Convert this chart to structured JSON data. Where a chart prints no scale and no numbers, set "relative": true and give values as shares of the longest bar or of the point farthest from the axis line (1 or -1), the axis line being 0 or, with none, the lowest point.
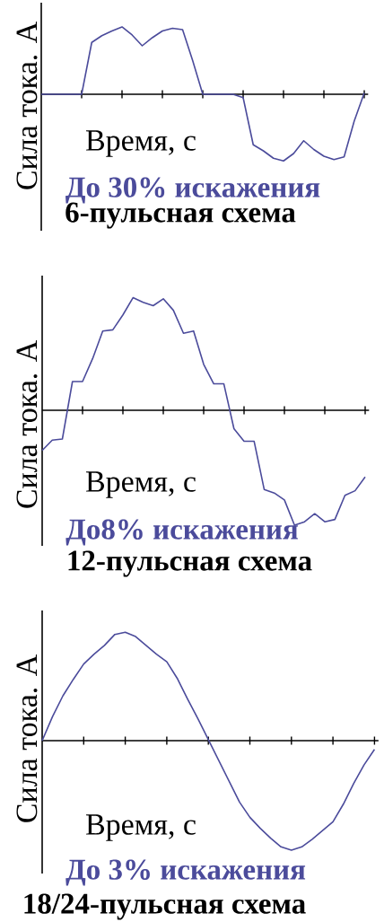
{
  "chart_data": [
    {
      "type": "line",
      "title": "6-пульсная схема",
      "xlabel": "Время, с",
      "ylabel": "Сила тока. А",
      "annotations": [
        "До 30% искажения"
      ],
      "relative": true,
      "categories": [
        null,
        null,
        null,
        null,
        null,
        null,
        null,
        null,
        null,
        null,
        null,
        null,
        null,
        null,
        null,
        null,
        null,
        null,
        null,
        null,
        null,
        null,
        null,
        null,
        null,
        null,
        null,
        null,
        null,
        null,
        null,
        null,
        null
      ],
      "series": [
        {
          "color": "#4b4b9b",
          "values": [
            0,
            0,
            0,
            0,
            0,
            0.77,
            0.87,
            0.94,
            1,
            0.88,
            0.72,
            0.84,
            0.94,
            0.98,
            0.96,
            0.5,
            0,
            0,
            0,
            0,
            -0.05,
            -0.75,
            -0.84,
            -0.95,
            -0.99,
            -0.88,
            -0.69,
            -0.82,
            -0.92,
            -0.97,
            -0.93,
            -0.4,
            0.02
          ]
        }
      ]
    },
    {
      "type": "line",
      "title": "12-пульсная схема",
      "xlabel": "Время, с",
      "ylabel": "Сила тока. А",
      "annotations": [
        "До8% искажения"
      ],
      "relative": true,
      "categories": [
        null,
        null,
        null,
        null,
        null,
        null,
        null,
        null,
        null,
        null,
        null,
        null,
        null,
        null,
        null,
        null,
        null,
        null,
        null,
        null,
        null,
        null,
        null,
        null,
        null,
        null,
        null,
        null,
        null,
        null,
        null,
        null,
        null
      ],
      "series": [
        {
          "color": "#4b4b9b",
          "values": [
            -0.35,
            -0.26,
            -0.25,
            0.25,
            0.25,
            0.45,
            0.69,
            0.7,
            0.83,
            0.98,
            0.94,
            0.91,
            0.97,
            0.87,
            0.67,
            0.69,
            0.4,
            0.23,
            0.23,
            -0.16,
            -0.27,
            -0.27,
            -0.69,
            -0.72,
            -0.78,
            -1,
            -0.97,
            -0.9,
            -0.97,
            -0.95,
            -0.74,
            -0.7,
            -0.58
          ]
        }
      ]
    },
    {
      "type": "line",
      "title": "18/24-пульсная схема",
      "xlabel": "Время, с",
      "ylabel": "Сила тока. А",
      "annotations": [
        "До 3% искажения"
      ],
      "relative": true,
      "categories": [
        null,
        null,
        null,
        null,
        null,
        null,
        null,
        null,
        null,
        null,
        null,
        null,
        null,
        null,
        null,
        null,
        null,
        null,
        null,
        null,
        null,
        null,
        null,
        null,
        null,
        null,
        null,
        null,
        null,
        null,
        null,
        null,
        null
      ],
      "series": [
        {
          "color": "#4b4b9b",
          "values": [
            0,
            0.22,
            0.41,
            0.56,
            0.7,
            0.79,
            0.87,
            0.97,
            0.99,
            0.95,
            0.87,
            0.79,
            0.72,
            0.57,
            0.38,
            0.2,
            0.01,
            -0.18,
            -0.37,
            -0.56,
            -0.7,
            -0.8,
            -0.89,
            -0.97,
            -1,
            -0.97,
            -0.9,
            -0.82,
            -0.74,
            -0.58,
            -0.39,
            -0.22,
            -0.08
          ]
        }
      ]
    }
  ]
}
